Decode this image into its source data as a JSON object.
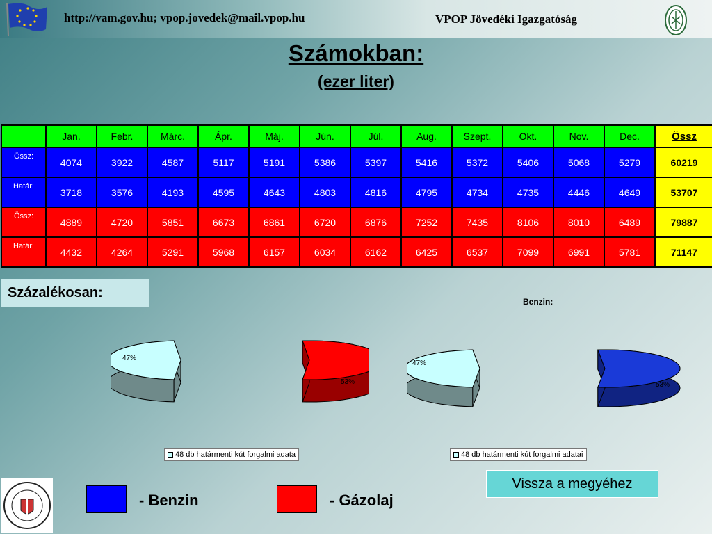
{
  "header": {
    "url_text": "http://vam.gov.hu; vpop.jovedek@mail.vpop.hu",
    "org_text": "VPOP Jövedéki Igazgatóság"
  },
  "title": "Számokban:",
  "subtitle": "(ezer liter)",
  "table": {
    "columns": [
      "Jan.",
      "Febr.",
      "Márc.",
      "Ápr.",
      "Máj.",
      "Jún.",
      "Júl.",
      "Aug.",
      "Szept.",
      "Okt.",
      "Nov.",
      "Dec.",
      "Össz"
    ],
    "rows": [
      {
        "label": "Össz:",
        "fuel": "benzin",
        "values": [
          "4074",
          "3922",
          "4587",
          "5117",
          "5191",
          "5386",
          "5397",
          "5416",
          "5372",
          "5406",
          "5068",
          "5279"
        ],
        "total": "60219"
      },
      {
        "label": "Határ:",
        "fuel": "benzin",
        "values": [
          "3718",
          "3576",
          "4193",
          "4595",
          "4643",
          "4803",
          "4816",
          "4795",
          "4734",
          "4735",
          "4446",
          "4649"
        ],
        "total": "53707"
      },
      {
        "label": "Össz:",
        "fuel": "gazolaj",
        "values": [
          "4889",
          "4720",
          "5851",
          "6673",
          "6861",
          "6720",
          "6876",
          "7252",
          "7435",
          "8106",
          "8010",
          "6489"
        ],
        "total": "79887"
      },
      {
        "label": "Határ:",
        "fuel": "gazolaj",
        "values": [
          "4432",
          "4264",
          "5291",
          "5968",
          "6157",
          "6034",
          "6162",
          "6425",
          "6537",
          "7099",
          "6991",
          "5781"
        ],
        "total": "71147"
      }
    ]
  },
  "percent_heading": "Százalékosan:",
  "chart_data": [
    {
      "type": "pie",
      "title": "",
      "labels": [
        "47%",
        "53%"
      ],
      "values": [
        47,
        53
      ],
      "colors": [
        "#c8ffff",
        "#ff0000"
      ],
      "legend": "48 db határmenti kút forgalmi adata"
    },
    {
      "type": "pie",
      "title": "Benzin:",
      "labels": [
        "47%",
        "53%"
      ],
      "values": [
        47,
        53
      ],
      "colors": [
        "#c8ffff",
        "#1a3ad8"
      ],
      "legend": "48 db határmenti kút forgalmi adatai"
    }
  ],
  "back_button": "Vissza a megyéhez",
  "key": {
    "benzin_label": "- Benzin",
    "benzin_color": "#0000ff",
    "gazolaj_label": "- Gázolaj",
    "gazolaj_color": "#ff0000"
  }
}
